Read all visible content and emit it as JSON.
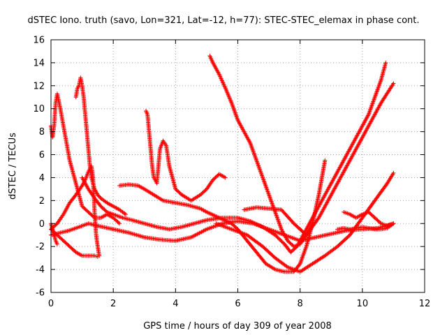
{
  "chart_data": {
    "type": "scatter",
    "title": "dSTEC Iono. truth (savo, Lon=321, Lat=-12, h=77): STEC-STEC_elemax in phase cont.",
    "xlabel": "GPS time / hours of day 309 of year 2008",
    "ylabel": "dSTEC  / TECUs",
    "xlim": [
      0,
      12
    ],
    "ylim": [
      -6,
      16
    ],
    "x_ticks": [
      "0",
      "2",
      "4",
      "6",
      "8",
      "10",
      "12"
    ],
    "y_ticks": [
      "-6",
      "-4",
      "-2",
      "0",
      "2",
      "4",
      "6",
      "8",
      "10",
      "12",
      "14",
      "16"
    ],
    "grid": true,
    "marker": "+",
    "color": "#ff0000",
    "series": [
      {
        "x": [
          0.0,
          0.05,
          0.1,
          0.15,
          0.2,
          0.3,
          0.4,
          0.5,
          0.6,
          0.8,
          1.0,
          1.2,
          1.4,
          1.6,
          1.8,
          2.0,
          2.2
        ],
        "values": [
          8.5,
          7.5,
          8.5,
          10.5,
          11.3,
          10.0,
          8.5,
          7.0,
          5.5,
          3.5,
          1.5,
          1.0,
          0.5,
          0.5,
          0.8,
          0.5,
          0.0
        ]
      },
      {
        "x": [
          0.0,
          0.05,
          0.1,
          0.15,
          0.2
        ],
        "values": [
          0.0,
          -0.5,
          -1.0,
          -1.5,
          -1.8
        ]
      },
      {
        "x": [
          0.8,
          0.85,
          0.9,
          0.95,
          1.0,
          1.05,
          1.1,
          1.15,
          1.2,
          1.25,
          1.3,
          1.4,
          1.5,
          1.6,
          1.8,
          2.0,
          2.2,
          2.4
        ],
        "values": [
          11.0,
          11.8,
          12.0,
          12.7,
          12.0,
          11.0,
          9.5,
          8.0,
          6.5,
          5.0,
          4.0,
          3.0,
          2.5,
          2.2,
          1.8,
          1.5,
          1.2,
          0.8
        ]
      },
      {
        "x": [
          0.0,
          0.2,
          0.4,
          0.6,
          0.8,
          1.0,
          1.1,
          1.2,
          1.3,
          1.35,
          1.4,
          1.45,
          1.5,
          1.55
        ],
        "values": [
          -0.5,
          0.0,
          0.8,
          1.8,
          2.5,
          3.3,
          3.8,
          4.5,
          5.0,
          4.0,
          1.0,
          -1.0,
          -2.0,
          -2.8
        ]
      },
      {
        "x": [
          0.0,
          0.2,
          0.4,
          0.6,
          0.8,
          1.0,
          1.2,
          1.4,
          1.5
        ],
        "values": [
          -0.5,
          -1.0,
          -1.5,
          -2.0,
          -2.5,
          -2.8,
          -2.8,
          -2.8,
          -2.9
        ]
      },
      {
        "x": [
          0.0,
          0.3,
          0.6,
          0.9,
          1.2,
          1.5,
          2.0,
          2.5,
          3.0,
          3.5,
          4.0,
          4.5,
          5.0,
          5.5,
          6.0,
          6.5,
          7.0,
          7.5,
          8.0,
          8.5,
          9.0,
          9.5,
          10.0,
          10.5,
          11.0
        ],
        "values": [
          -1.0,
          -0.8,
          -0.6,
          -0.3,
          0.0,
          -0.2,
          -0.5,
          -0.8,
          -1.2,
          -1.4,
          -1.5,
          -1.2,
          -0.5,
          0.0,
          0.2,
          0.0,
          -0.5,
          -1.0,
          -1.5,
          -1.2,
          -0.9,
          -0.6,
          -0.5,
          -0.4,
          0.0
        ]
      },
      {
        "x": [
          1.0,
          1.2,
          1.4,
          1.6,
          1.8,
          2.0,
          2.3,
          2.6,
          3.0,
          3.4,
          3.8,
          4.2,
          4.6,
          5.0,
          5.5,
          6.0
        ],
        "values": [
          4.0,
          3.0,
          2.2,
          1.5,
          1.0,
          0.8,
          0.5,
          0.3,
          0.0,
          -0.3,
          -0.5,
          -0.3,
          0.0,
          0.3,
          0.5,
          0.5
        ]
      },
      {
        "x": [
          3.05,
          3.1,
          3.15,
          3.2,
          3.25,
          3.3,
          3.35,
          3.4,
          3.5,
          3.6,
          3.7,
          3.8,
          4.0,
          4.2,
          4.5,
          4.8,
          5.0,
          5.2,
          5.4,
          5.6
        ],
        "values": [
          9.8,
          9.5,
          8.0,
          6.5,
          5.0,
          4.0,
          3.8,
          3.5,
          6.5,
          7.2,
          6.8,
          5.0,
          3.0,
          2.5,
          2.0,
          2.5,
          3.0,
          3.8,
          4.3,
          4.0
        ]
      },
      {
        "x": [
          5.1,
          5.2,
          5.4,
          5.6,
          5.8,
          6.0,
          6.2,
          6.4,
          6.6,
          6.8,
          7.0,
          7.2,
          7.4,
          7.6,
          7.8,
          8.0,
          8.2,
          8.4
        ],
        "values": [
          14.6,
          14.0,
          13.0,
          11.8,
          10.5,
          9.0,
          8.0,
          7.0,
          5.5,
          4.0,
          2.5,
          1.0,
          -0.5,
          -1.5,
          -2.0,
          -1.8,
          -1.0,
          0.0
        ]
      },
      {
        "x": [
          2.2,
          2.5,
          2.8,
          3.0,
          3.3,
          3.6,
          4.0,
          4.4,
          4.8,
          5.0,
          5.4,
          5.8,
          6.0,
          6.3,
          6.6,
          6.9,
          7.2,
          7.5,
          7.8,
          8.0,
          8.2,
          8.4,
          8.6,
          8.8
        ],
        "values": [
          3.3,
          3.4,
          3.3,
          3.0,
          2.5,
          2.0,
          1.8,
          1.6,
          1.3,
          1.0,
          0.5,
          0.0,
          -0.5,
          -1.5,
          -2.5,
          -3.5,
          -4.0,
          -4.2,
          -4.2,
          -3.5,
          -2.0,
          0.0,
          2.5,
          5.5
        ]
      },
      {
        "x": [
          6.0,
          6.4,
          6.8,
          7.2,
          7.5,
          7.7,
          7.9,
          8.1,
          8.3,
          8.5,
          8.8,
          9.0,
          9.3,
          9.6,
          9.9,
          10.2,
          10.4,
          10.6,
          10.75
        ],
        "values": [
          0.5,
          0.2,
          -0.3,
          -1.0,
          -1.8,
          -2.5,
          -2.0,
          -1.0,
          0.0,
          1.0,
          2.5,
          3.5,
          5.0,
          6.5,
          8.0,
          9.5,
          11.0,
          12.5,
          14.0
        ]
      },
      {
        "x": [
          6.2,
          6.6,
          7.0,
          7.4,
          7.8,
          8.2,
          8.6,
          9.0,
          9.4,
          9.8,
          10.2,
          10.6,
          11.0
        ],
        "values": [
          1.2,
          1.4,
          1.3,
          1.2,
          0.0,
          -1.0,
          0.5,
          2.5,
          4.5,
          6.5,
          8.5,
          10.5,
          12.2
        ]
      },
      {
        "x": [
          5.3,
          5.8,
          6.3,
          6.8,
          7.2,
          7.6,
          8.0,
          8.4,
          8.8,
          9.2,
          9.6,
          10.0,
          10.4,
          10.8,
          11.0
        ],
        "values": [
          0.0,
          -0.5,
          -1.0,
          -2.0,
          -3.0,
          -3.8,
          -4.2,
          -3.5,
          -2.8,
          -2.0,
          -1.0,
          0.5,
          2.0,
          3.5,
          4.4
        ]
      },
      {
        "x": [
          9.2,
          9.4,
          9.6,
          9.8,
          10.0,
          10.2,
          10.4,
          10.6,
          10.8,
          11.0
        ],
        "values": [
          -0.5,
          -0.4,
          -0.5,
          -0.4,
          -0.3,
          -0.4,
          -0.5,
          -0.5,
          -0.4,
          0.0
        ]
      },
      {
        "x": [
          9.4,
          9.6,
          9.8,
          10.0,
          10.2,
          10.4,
          10.6,
          10.8,
          11.0
        ],
        "values": [
          1.0,
          0.8,
          0.5,
          0.8,
          1.0,
          0.5,
          0.0,
          -0.2,
          0.0
        ]
      }
    ]
  }
}
